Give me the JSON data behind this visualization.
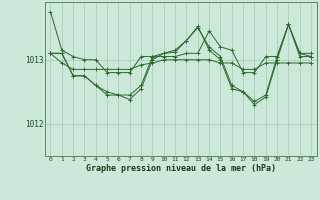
{
  "title": "Graphe pression niveau de la mer (hPa)",
  "bg_color": "#cce8d8",
  "line_color": "#2d6a2d",
  "grid_color": "#a8c8b8",
  "xlim": [
    -0.5,
    23.5
  ],
  "ylim": [
    1011.5,
    1013.9
  ],
  "yticks": [
    1012,
    1013
  ],
  "xticks": [
    0,
    1,
    2,
    3,
    4,
    5,
    6,
    7,
    8,
    9,
    10,
    11,
    12,
    13,
    14,
    15,
    16,
    17,
    18,
    19,
    20,
    21,
    22,
    23
  ],
  "series": [
    [
      1013.75,
      1013.15,
      1013.05,
      1013.0,
      1013.0,
      1012.8,
      1012.8,
      1012.8,
      1013.05,
      1013.05,
      1013.05,
      1013.05,
      1013.1,
      1013.1,
      1013.45,
      1013.2,
      1013.15,
      1012.8,
      1012.8,
      1013.05,
      1013.05,
      1013.55,
      1013.1,
      1013.1
    ],
    [
      1013.1,
      1012.95,
      1012.85,
      1012.85,
      1012.85,
      1012.85,
      1012.85,
      1012.85,
      1012.92,
      1012.95,
      1013.0,
      1013.0,
      1013.0,
      1013.0,
      1013.0,
      1012.95,
      1012.95,
      1012.85,
      1012.85,
      1012.95,
      1012.95,
      1012.95,
      1012.95,
      1012.95
    ],
    [
      1013.1,
      1013.1,
      1012.75,
      1012.75,
      1012.6,
      1012.5,
      1012.45,
      1012.45,
      1012.6,
      1013.05,
      1013.1,
      1013.15,
      1013.3,
      1013.5,
      1013.2,
      1013.05,
      1012.6,
      1012.5,
      1012.35,
      1012.45,
      1013.05,
      1013.55,
      1013.1,
      1013.05
    ],
    [
      1013.1,
      1013.1,
      1012.75,
      1012.75,
      1012.6,
      1012.45,
      1012.45,
      1012.38,
      1012.55,
      1013.0,
      1013.1,
      1013.12,
      1013.3,
      1013.52,
      1013.15,
      1013.0,
      1012.55,
      1012.5,
      1012.3,
      1012.42,
      1013.0,
      1013.55,
      1013.05,
      1013.05
    ]
  ]
}
